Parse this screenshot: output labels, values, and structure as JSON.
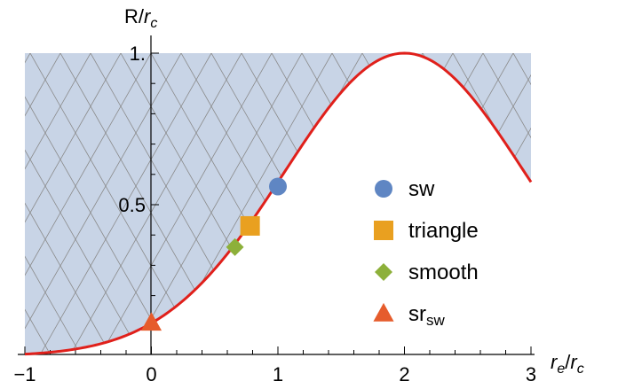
{
  "chart_data": {
    "type": "line",
    "xlabel": {
      "base": "r",
      "sub": "e",
      "sep": "/",
      "base2": "r",
      "sub2": "c"
    },
    "ylabel": {
      "base": "R/",
      "base2": "r",
      "sub2": "c"
    },
    "xlim": [
      -1,
      3
    ],
    "ylim": [
      0.1,
      1.0
    ],
    "x_ticks": [
      -1,
      0,
      1,
      2,
      3
    ],
    "x_tick_labels": [
      "−1",
      "0",
      "1",
      "2",
      "3"
    ],
    "y_ticks": [
      0.5,
      1.0
    ],
    "y_tick_labels": [
      "0.5",
      "1."
    ],
    "curve": {
      "color": "#e0201b",
      "form": "gaussian",
      "peak_x": 2,
      "peak_y": 1.0,
      "sigma": 0.95,
      "sample_points": [
        [
          -1,
          0.086
        ],
        [
          0,
          0.219
        ],
        [
          1,
          0.578
        ],
        [
          2,
          1.0
        ],
        [
          3,
          0.578
        ]
      ]
    },
    "shaded_region": {
      "fill": "#c8d4e6",
      "hatch_color": "#8a8a8a",
      "top": 1.0,
      "description": "area between curve and y = 1"
    },
    "series": [
      {
        "name": "sw",
        "marker": "circle",
        "color": "#5f86c3",
        "x": 1.0,
        "y": 0.56
      },
      {
        "name": "triangle",
        "marker": "square",
        "color": "#e9a020",
        "x": 0.78,
        "y": 0.43
      },
      {
        "name": "smooth",
        "marker": "diamond",
        "color": "#8db03a",
        "x": 0.66,
        "y": 0.36
      },
      {
        "name": "sr",
        "name_sub": "sw",
        "marker": "triangle",
        "color": "#e65c2c",
        "x": 0.0,
        "y": 0.11
      }
    ],
    "legend": {
      "position": "right-middle",
      "entries": [
        {
          "label": "sw",
          "sub": "",
          "marker": "circle",
          "color": "#5f86c3"
        },
        {
          "label": "triangle",
          "sub": "",
          "marker": "square",
          "color": "#e9a020"
        },
        {
          "label": "smooth",
          "sub": "",
          "marker": "diamond",
          "color": "#8db03a"
        },
        {
          "label": "sr",
          "sub": "sw",
          "marker": "triangle",
          "color": "#e65c2c"
        }
      ]
    }
  }
}
